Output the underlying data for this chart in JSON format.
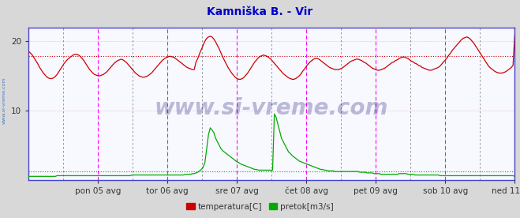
{
  "title": "Kamniška B. - Vir",
  "title_color": "#0000cc",
  "title_fontsize": 10,
  "bg_color": "#d8d8d8",
  "plot_bg_color": "#f8f8ff",
  "xlim": [
    0,
    336
  ],
  "ylim_temp": [
    0,
    25
  ],
  "ylim_flow": [
    0,
    25
  ],
  "yticks": [
    10,
    20
  ],
  "xtick_labels": [
    "pon 05 avg",
    "tor 06 avg",
    "sre 07 avg",
    "čet 08 avg",
    "pet 09 avg",
    "sob 10 avg",
    "ned 11 avg"
  ],
  "xtick_positions": [
    48,
    96,
    144,
    192,
    240,
    288,
    336
  ],
  "vline_positions_magenta": [
    48,
    96,
    144,
    192,
    240,
    288,
    336
  ],
  "vline_positions_gray": [
    24,
    72,
    120,
    168,
    216,
    264,
    312
  ],
  "hline_temp_value": 17.8,
  "hline_flow_value": 1.2,
  "hline_color": "#cc0000",
  "hline_flow_color": "#00aa00",
  "grid_color": "#cc99cc",
  "vline_color": "#ff00ff",
  "vline_gray_color": "#888888",
  "watermark_text": "www.si-vreme.com",
  "watermark_color": "#000066",
  "watermark_alpha": 0.25,
  "watermark_fontsize": 20,
  "temp_color": "#cc0000",
  "flow_color": "#00aa00",
  "legend_items": [
    {
      "label": "temperatura[C]",
      "color": "#cc0000"
    },
    {
      "label": "pretok[m3/s]",
      "color": "#00aa00"
    }
  ],
  "sidebar_text": "www.si-vreme.com",
  "sidebar_color": "#4477bb",
  "axis_color": "#4444cc",
  "temp_data": [
    18.5,
    18.3,
    18.0,
    17.6,
    17.2,
    16.8,
    16.3,
    15.9,
    15.5,
    15.2,
    14.9,
    14.7,
    14.6,
    14.6,
    14.7,
    14.9,
    15.2,
    15.6,
    16.0,
    16.4,
    16.8,
    17.1,
    17.4,
    17.6,
    17.8,
    18.0,
    18.1,
    18.1,
    18.0,
    17.8,
    17.5,
    17.2,
    16.8,
    16.4,
    16.0,
    15.7,
    15.4,
    15.2,
    15.1,
    15.0,
    15.0,
    15.1,
    15.2,
    15.4,
    15.6,
    15.9,
    16.2,
    16.5,
    16.8,
    17.0,
    17.2,
    17.3,
    17.4,
    17.3,
    17.1,
    16.9,
    16.6,
    16.3,
    16.0,
    15.7,
    15.4,
    15.2,
    15.0,
    14.9,
    14.8,
    14.8,
    14.9,
    15.0,
    15.2,
    15.4,
    15.7,
    16.0,
    16.3,
    16.6,
    16.9,
    17.2,
    17.4,
    17.6,
    17.7,
    17.8,
    17.8,
    17.7,
    17.6,
    17.4,
    17.2,
    17.0,
    16.8,
    16.6,
    16.4,
    16.2,
    16.1,
    16.0,
    15.9,
    15.9,
    17.0,
    17.5,
    18.2,
    18.8,
    19.4,
    20.0,
    20.4,
    20.6,
    20.7,
    20.6,
    20.3,
    19.9,
    19.4,
    18.9,
    18.3,
    17.7,
    17.2,
    16.7,
    16.2,
    15.8,
    15.4,
    15.1,
    14.8,
    14.6,
    14.5,
    14.5,
    14.6,
    14.8,
    15.1,
    15.4,
    15.8,
    16.2,
    16.6,
    17.0,
    17.3,
    17.6,
    17.8,
    17.9,
    18.0,
    17.9,
    17.8,
    17.6,
    17.4,
    17.1,
    16.8,
    16.5,
    16.2,
    15.9,
    15.6,
    15.3,
    15.1,
    14.9,
    14.7,
    14.6,
    14.5,
    14.5,
    14.6,
    14.8,
    15.0,
    15.3,
    15.7,
    16.0,
    16.4,
    16.7,
    17.0,
    17.2,
    17.4,
    17.5,
    17.5,
    17.4,
    17.2,
    17.0,
    16.8,
    16.6,
    16.4,
    16.2,
    16.1,
    16.0,
    15.9,
    15.9,
    15.9,
    16.0,
    16.1,
    16.3,
    16.5,
    16.7,
    16.9,
    17.1,
    17.2,
    17.3,
    17.4,
    17.4,
    17.3,
    17.2,
    17.0,
    16.9,
    16.7,
    16.5,
    16.3,
    16.1,
    16.0,
    15.9,
    15.8,
    15.8,
    15.9,
    16.0,
    16.1,
    16.3,
    16.5,
    16.7,
    16.9,
    17.0,
    17.2,
    17.3,
    17.5,
    17.6,
    17.7,
    17.7,
    17.6,
    17.5,
    17.3,
    17.1,
    17.0,
    16.8,
    16.7,
    16.5,
    16.4,
    16.2,
    16.1,
    16.0,
    15.9,
    15.8,
    15.8,
    15.9,
    16.0,
    16.1,
    16.2,
    16.4,
    16.7,
    17.0,
    17.3,
    17.6,
    18.0,
    18.3,
    18.7,
    19.0,
    19.3,
    19.6,
    19.9,
    20.2,
    20.4,
    20.5,
    20.6,
    20.5,
    20.3,
    20.0,
    19.7,
    19.3,
    18.9,
    18.5,
    18.1,
    17.7,
    17.3,
    16.9,
    16.5,
    16.2,
    16.0,
    15.8,
    15.6,
    15.5,
    15.4,
    15.4,
    15.4,
    15.5,
    15.6,
    15.8,
    16.0,
    16.2,
    16.5,
    21.0
  ],
  "flow_data": [
    0.5,
    0.5,
    0.5,
    0.5,
    0.5,
    0.5,
    0.5,
    0.5,
    0.5,
    0.5,
    0.5,
    0.5,
    0.5,
    0.5,
    0.5,
    0.5,
    0.6,
    0.6,
    0.6,
    0.6,
    0.6,
    0.6,
    0.6,
    0.6,
    0.6,
    0.6,
    0.6,
    0.6,
    0.6,
    0.6,
    0.6,
    0.6,
    0.6,
    0.6,
    0.6,
    0.6,
    0.6,
    0.6,
    0.6,
    0.6,
    0.6,
    0.6,
    0.6,
    0.6,
    0.6,
    0.6,
    0.6,
    0.6,
    0.6,
    0.6,
    0.6,
    0.6,
    0.6,
    0.6,
    0.6,
    0.6,
    0.6,
    0.6,
    0.7,
    0.7,
    0.7,
    0.7,
    0.7,
    0.7,
    0.7,
    0.7,
    0.7,
    0.7,
    0.7,
    0.7,
    0.7,
    0.7,
    0.7,
    0.7,
    0.7,
    0.7,
    0.7,
    0.7,
    0.7,
    0.7,
    0.7,
    0.7,
    0.7,
    0.7,
    0.7,
    0.7,
    0.7,
    0.7,
    0.8,
    0.8,
    0.8,
    0.8,
    0.9,
    0.9,
    1.0,
    1.1,
    1.3,
    1.5,
    1.8,
    2.5,
    4.5,
    6.5,
    7.5,
    7.2,
    6.8,
    6.0,
    5.5,
    5.0,
    4.5,
    4.2,
    4.0,
    3.8,
    3.6,
    3.4,
    3.2,
    3.0,
    2.8,
    2.6,
    2.5,
    2.3,
    2.2,
    2.1,
    2.0,
    1.9,
    1.8,
    1.7,
    1.6,
    1.5,
    1.5,
    1.4,
    1.4,
    1.4,
    1.4,
    1.4,
    1.4,
    1.4,
    1.4,
    1.4,
    9.5,
    9.0,
    8.0,
    7.0,
    6.0,
    5.5,
    5.0,
    4.5,
    4.0,
    3.8,
    3.5,
    3.3,
    3.1,
    2.9,
    2.7,
    2.6,
    2.5,
    2.4,
    2.3,
    2.2,
    2.1,
    2.0,
    1.9,
    1.8,
    1.7,
    1.6,
    1.5,
    1.5,
    1.4,
    1.4,
    1.3,
    1.3,
    1.3,
    1.3,
    1.2,
    1.2,
    1.2,
    1.2,
    1.2,
    1.2,
    1.2,
    1.2,
    1.2,
    1.2,
    1.2,
    1.2,
    1.2,
    1.2,
    1.1,
    1.1,
    1.1,
    1.1,
    1.0,
    1.0,
    1.0,
    1.0,
    0.9,
    0.9,
    0.9,
    0.9,
    0.8,
    0.8,
    0.8,
    0.8,
    0.8,
    0.8,
    0.8,
    0.8,
    0.8,
    0.8,
    0.9,
    0.9,
    0.9,
    0.9,
    0.9,
    0.8,
    0.8,
    0.8,
    0.8,
    0.7,
    0.7,
    0.7,
    0.7,
    0.7,
    0.7,
    0.7,
    0.7,
    0.7,
    0.7,
    0.7,
    0.7,
    0.7,
    0.7,
    0.6,
    0.6,
    0.6,
    0.6,
    0.6,
    0.6,
    0.6,
    0.6,
    0.6,
    0.6,
    0.6,
    0.6,
    0.6,
    0.6,
    0.6,
    0.6,
    0.6,
    0.6,
    0.6,
    0.6,
    0.6,
    0.6,
    0.6,
    0.6,
    0.6,
    0.6,
    0.6,
    0.6,
    0.6,
    0.6,
    0.6,
    0.6,
    0.6,
    0.6,
    0.6,
    0.6,
    0.6,
    0.6,
    0.6,
    0.6,
    0.6,
    0.6,
    0.5
  ]
}
